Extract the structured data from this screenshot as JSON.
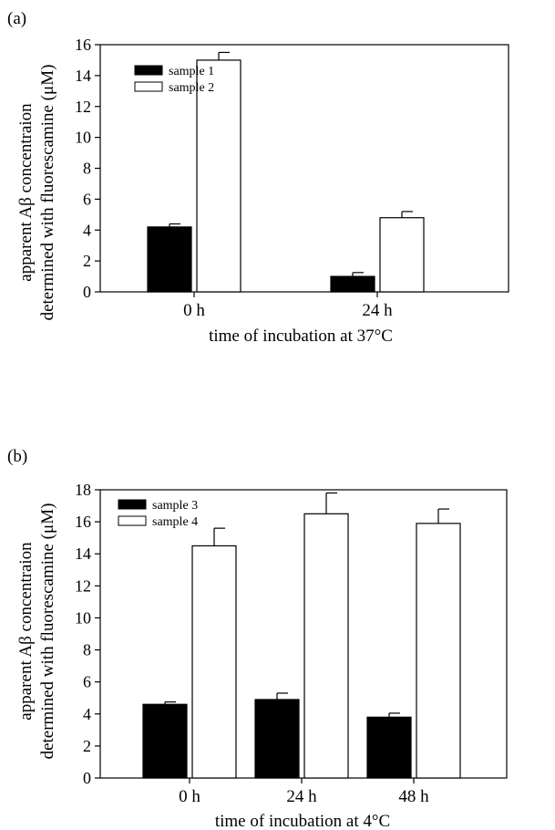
{
  "chart_data": [
    {
      "type": "bar",
      "panel_label": "(a)",
      "categories": [
        "0 h",
        "24 h"
      ],
      "series": [
        {
          "name": "sample 1",
          "values": [
            4.2,
            1.0
          ],
          "errors": [
            0.2,
            0.25
          ],
          "fill": "#000000"
        },
        {
          "name": "sample 2",
          "values": [
            15.0,
            4.8
          ],
          "errors": [
            0.5,
            0.4
          ],
          "fill": "#ffffff"
        }
      ],
      "xlabel": "time of incubation at 37°C",
      "ylabel_line1": "apparent Aβ concentraion",
      "ylabel_line2": "determined with fluorescamine (μM)",
      "ylim": [
        0,
        16
      ],
      "yticks": [
        "0",
        "2",
        "4",
        "6",
        "8",
        "10",
        "12",
        "14",
        "16"
      ],
      "legend_position": "top-left"
    },
    {
      "type": "bar",
      "panel_label": "(b)",
      "categories": [
        "0 h",
        "24 h",
        "48 h"
      ],
      "series": [
        {
          "name": "sample 3",
          "values": [
            4.6,
            4.9,
            3.8
          ],
          "errors": [
            0.15,
            0.4,
            0.25
          ],
          "fill": "#000000"
        },
        {
          "name": "sample 4",
          "values": [
            14.5,
            16.5,
            15.9
          ],
          "errors": [
            1.1,
            1.3,
            0.9
          ],
          "fill": "#ffffff"
        }
      ],
      "xlabel": "time of incubation at 4°C",
      "ylabel_line1": "apparent Aβ concentraion",
      "ylabel_line2": "determined with fluorescamine (μM)",
      "ylim": [
        0,
        18
      ],
      "yticks": [
        "0",
        "2",
        "4",
        "6",
        "8",
        "10",
        "12",
        "14",
        "16",
        "18"
      ],
      "legend_position": "top-left"
    }
  ]
}
